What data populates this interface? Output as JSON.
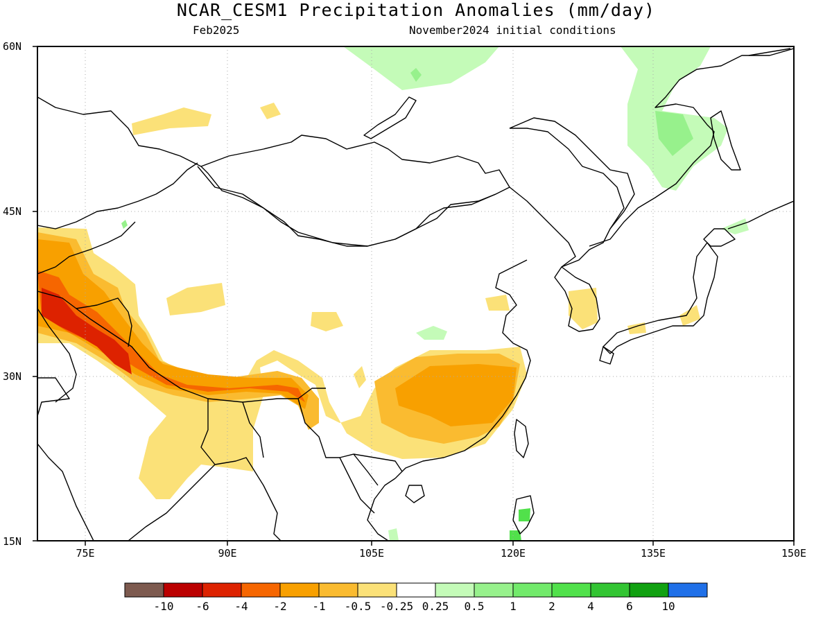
{
  "map": {
    "title": "NCAR_CESM1 Precipitation Anomalies (mm/day)",
    "period": "Feb2025",
    "initial_conditions": "November2024 initial conditions",
    "lat_labels": [
      "60N",
      "45N",
      "30N",
      "15N"
    ],
    "lon_labels": [
      "75E",
      "90E",
      "105E",
      "120E",
      "135E",
      "150E"
    ]
  },
  "colorbar": {
    "labels": [
      "-10",
      "-6",
      "-4",
      "-2",
      "-1",
      "-0.5",
      "-0.25",
      "0.25",
      "0.5",
      "1",
      "2",
      "4",
      "6",
      "10"
    ],
    "colors": [
      "#7d5a4f",
      "#bb0000",
      "#dd2200",
      "#f66600",
      "#f8a000",
      "#fabb30",
      "#fbe178",
      "#ffffff",
      "#c4fbb8",
      "#97f18c",
      "#72ea6b",
      "#51e14b",
      "#33c533",
      "#11a111",
      "#2070e8"
    ]
  }
}
